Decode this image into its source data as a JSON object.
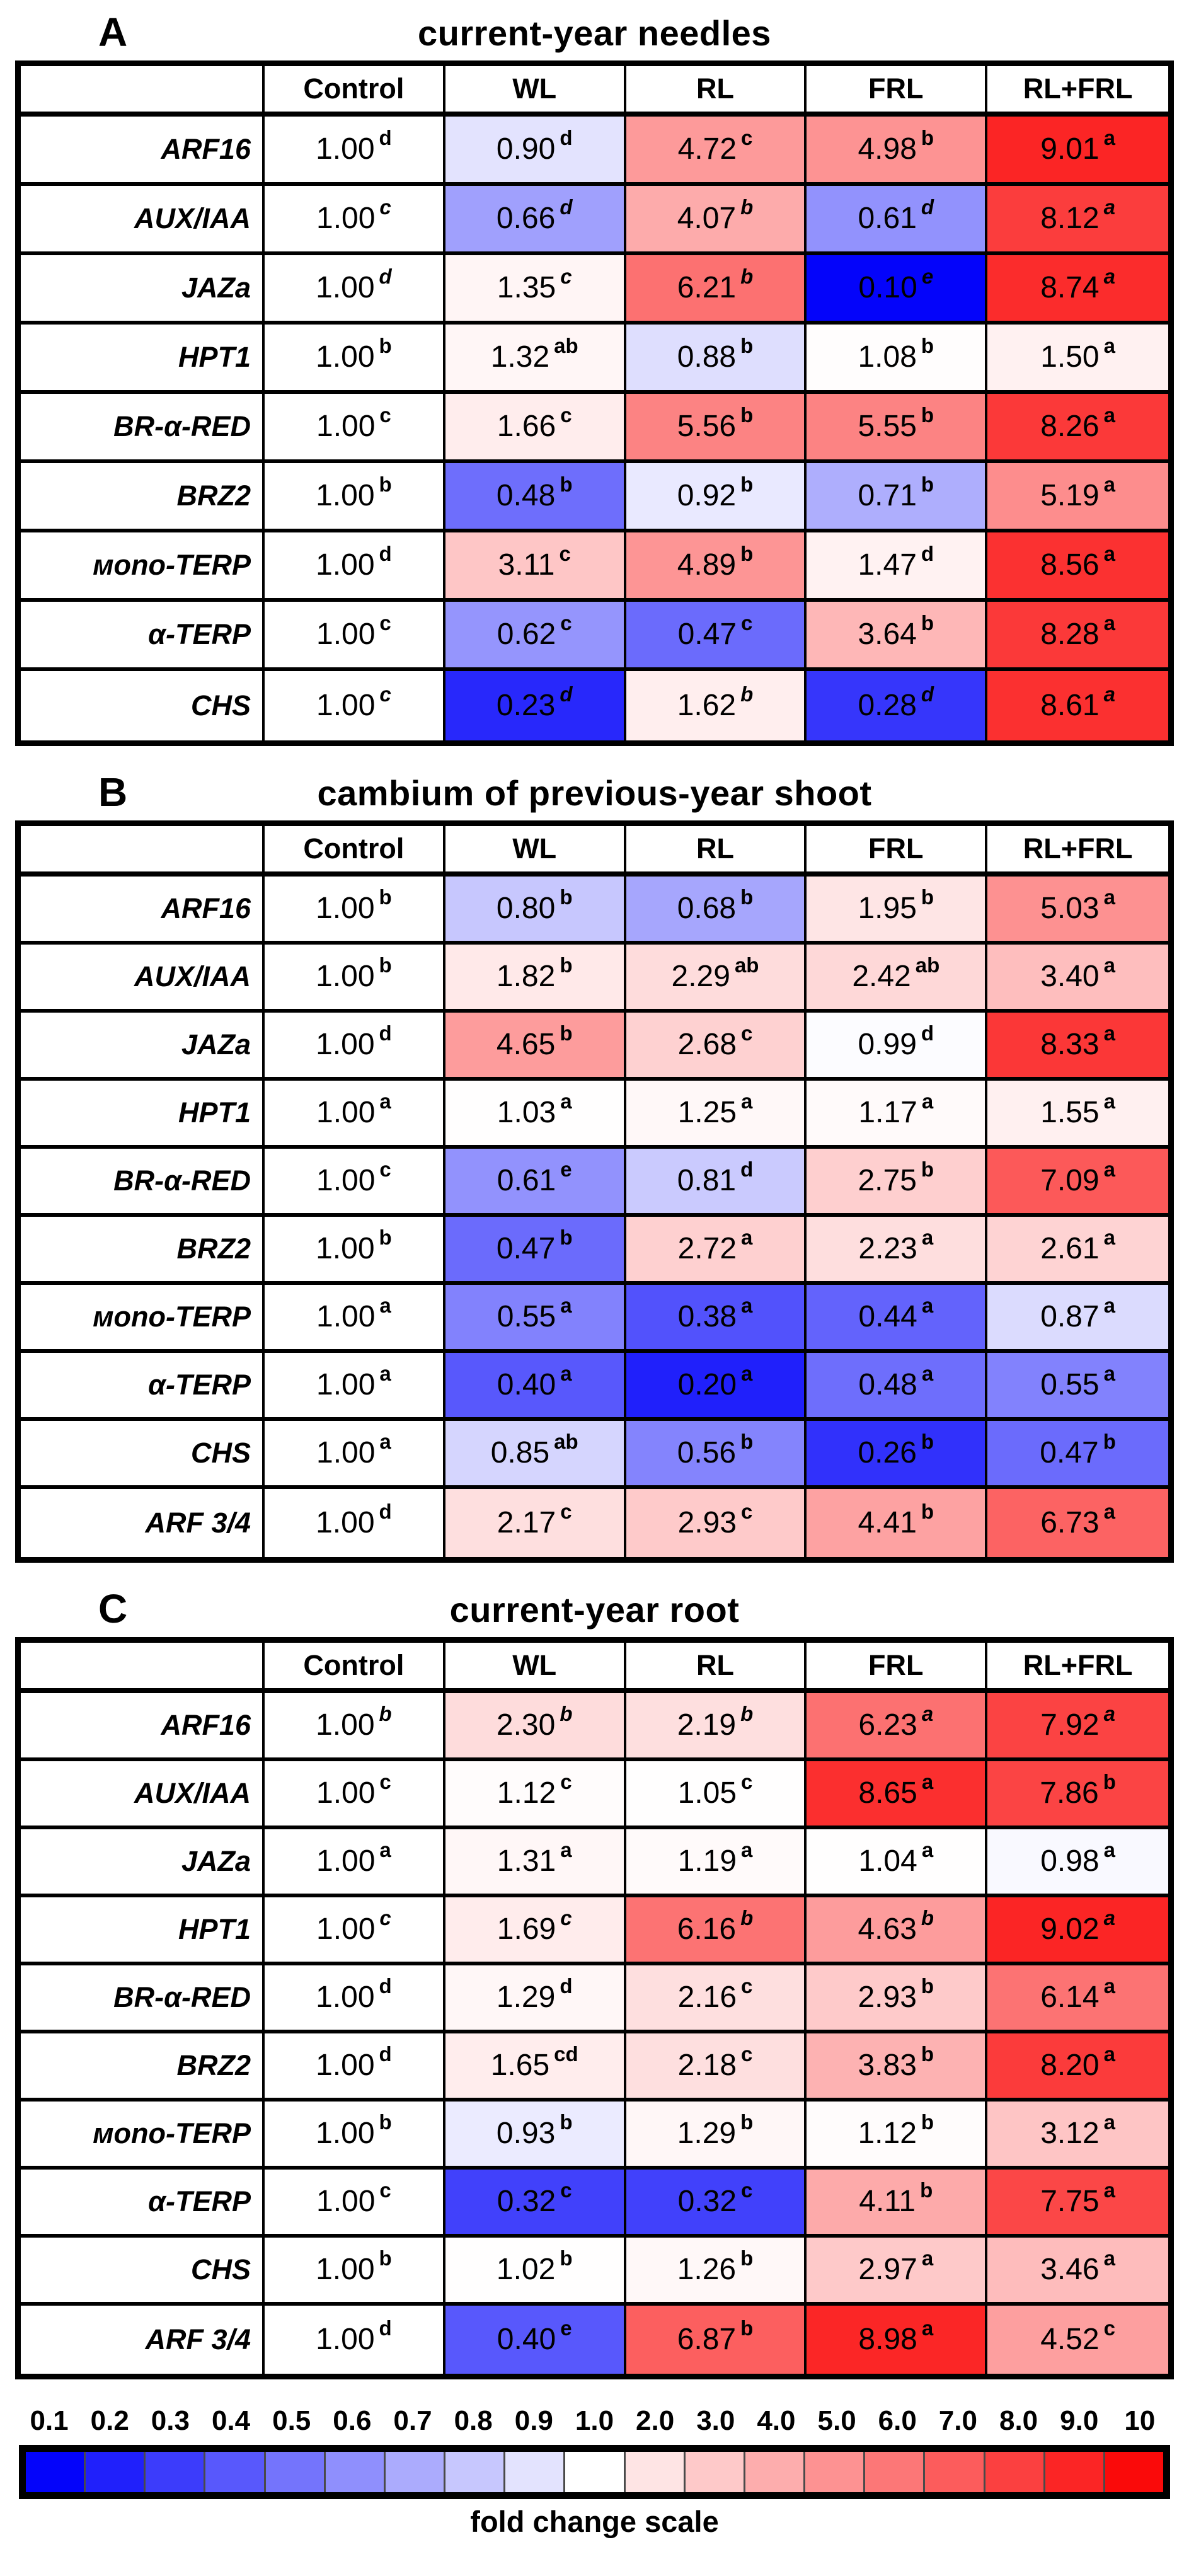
{
  "chart_data": {
    "type": "heatmap",
    "panels": [
      {
        "label": "A",
        "title": "current-year needles",
        "columns": [
          "Control",
          "WL",
          "RL",
          "FRL",
          "RL+FRL"
        ],
        "rows": [
          {
            "gene": "ARF16",
            "values": [
              "1.00",
              "0.90",
              "4.72",
              "4.98",
              "9.01"
            ],
            "sups": [
              "d",
              "d",
              "c",
              "b",
              "a"
            ],
            "sup_italic": false
          },
          {
            "gene": "AUX/IAA",
            "values": [
              "1.00",
              "0.66",
              "4.07",
              "0.61",
              "8.12"
            ],
            "sups": [
              "c",
              "d",
              "b",
              "d",
              "a"
            ],
            "sup_italic": true
          },
          {
            "gene": "JAZa",
            "values": [
              "1.00",
              "1.35",
              "6.21",
              "0.10",
              "8.74"
            ],
            "sups": [
              "d",
              "c",
              "b",
              "e",
              "a"
            ],
            "sup_italic": true
          },
          {
            "gene": "HPT1",
            "values": [
              "1.00",
              "1.32",
              "0.88",
              "1.08",
              "1.50"
            ],
            "sups": [
              "b",
              "ab",
              "b",
              "b",
              "a"
            ],
            "sup_italic": false
          },
          {
            "gene": "BR-α-RED",
            "values": [
              "1.00",
              "1.66",
              "5.56",
              "5.55",
              "8.26"
            ],
            "sups": [
              "c",
              "c",
              "b",
              "b",
              "a"
            ],
            "sup_italic": false
          },
          {
            "gene": "BRZ2",
            "values": [
              "1.00",
              "0.48",
              "0.92",
              "0.71",
              "5.19"
            ],
            "sups": [
              "b",
              "b",
              "b",
              "b",
              "a"
            ],
            "sup_italic": false
          },
          {
            "gene": "мono-TERP",
            "values": [
              "1.00",
              "3.11",
              "4.89",
              "1.47",
              "8.56"
            ],
            "sups": [
              "d",
              "c",
              "b",
              "d",
              "a"
            ],
            "sup_italic": false
          },
          {
            "gene": "α-TERP",
            "values": [
              "1.00",
              "0.62",
              "0.47",
              "3.64",
              "8.28"
            ],
            "sups": [
              "c",
              "c",
              "c",
              "b",
              "a"
            ],
            "sup_italic": false
          },
          {
            "gene": "CHS",
            "values": [
              "1.00",
              "0.23",
              "1.62",
              "0.28",
              "8.61"
            ],
            "sups": [
              "c",
              "d",
              "b",
              "d",
              "a"
            ],
            "sup_italic": true
          }
        ]
      },
      {
        "label": "B",
        "title": "cambium of previous-year shoot",
        "columns": [
          "Control",
          "WL",
          "RL",
          "FRL",
          "RL+FRL"
        ],
        "rows": [
          {
            "gene": "ARF16",
            "values": [
              "1.00",
              "0.80",
              "0.68",
              "1.95",
              "5.03"
            ],
            "sups": [
              "b",
              "b",
              "b",
              "b",
              "a"
            ],
            "sup_italic": false
          },
          {
            "gene": "AUX/IAA",
            "values": [
              "1.00",
              "1.82",
              "2.29",
              "2.42",
              "3.40"
            ],
            "sups": [
              "b",
              "b",
              "ab",
              "ab",
              "a"
            ],
            "sup_italic": false
          },
          {
            "gene": "JAZa",
            "values": [
              "1.00",
              "4.65",
              "2.68",
              "0.99",
              "8.33"
            ],
            "sups": [
              "d",
              "b",
              "c",
              "d",
              "a"
            ],
            "sup_italic": false
          },
          {
            "gene": "HPT1",
            "values": [
              "1.00",
              "1.03",
              "1.25",
              "1.17",
              "1.55"
            ],
            "sups": [
              "a",
              "a",
              "a",
              "a",
              "a"
            ],
            "sup_italic": false
          },
          {
            "gene": "BR-α-RED",
            "values": [
              "1.00",
              "0.61",
              "0.81",
              "2.75",
              "7.09"
            ],
            "sups": [
              "c",
              "e",
              "d",
              "b",
              "a"
            ],
            "sup_italic": false
          },
          {
            "gene": "BRZ2",
            "values": [
              "1.00",
              "0.47",
              "2.72",
              "2.23",
              "2.61"
            ],
            "sups": [
              "b",
              "b",
              "a",
              "a",
              "a"
            ],
            "sup_italic": false
          },
          {
            "gene": "мono-TERP",
            "values": [
              "1.00",
              "0.55",
              "0.38",
              "0.44",
              "0.87"
            ],
            "sups": [
              "a",
              "a",
              "a",
              "a",
              "a"
            ],
            "sup_italic": false
          },
          {
            "gene": "α-TERP",
            "values": [
              "1.00",
              "0.40",
              "0.20",
              "0.48",
              "0.55"
            ],
            "sups": [
              "a",
              "a",
              "a",
              "a",
              "a"
            ],
            "sup_italic": false
          },
          {
            "gene": "CHS",
            "values": [
              "1.00",
              "0.85",
              "0.56",
              "0.26",
              "0.47"
            ],
            "sups": [
              "a",
              "ab",
              "b",
              "b",
              "b"
            ],
            "sup_italic": false
          },
          {
            "gene": "ARF 3/4",
            "values": [
              "1.00",
              "2.17",
              "2.93",
              "4.41",
              "6.73"
            ],
            "sups": [
              "d",
              "c",
              "c",
              "b",
              "a"
            ],
            "sup_italic": false
          }
        ]
      },
      {
        "label": "C",
        "title": "current-year root",
        "columns": [
          "Control",
          "WL",
          "RL",
          "FRL",
          "RL+FRL"
        ],
        "rows": [
          {
            "gene": "ARF16",
            "values": [
              "1.00",
              "2.30",
              "2.19",
              "6.23",
              "7.92"
            ],
            "sups": [
              "b",
              "b",
              "b",
              "a",
              "a"
            ],
            "sup_italic": true
          },
          {
            "gene": "AUX/IAA",
            "values": [
              "1.00",
              "1.12",
              "1.05",
              "8.65",
              "7.86"
            ],
            "sups": [
              "c",
              "c",
              "c",
              "a",
              "b"
            ],
            "sup_italic": false
          },
          {
            "gene": "JAZa",
            "values": [
              "1.00",
              "1.31",
              "1.19",
              "1.04",
              "0.98"
            ],
            "sups": [
              "a",
              "a",
              "a",
              "a",
              "a"
            ],
            "sup_italic": false
          },
          {
            "gene": "HPT1",
            "values": [
              "1.00",
              "1.69",
              "6.16",
              "4.63",
              "9.02"
            ],
            "sups": [
              "c",
              "c",
              "b",
              "b",
              "a"
            ],
            "sup_italic": true
          },
          {
            "gene": "BR-α-RED",
            "values": [
              "1.00",
              "1.29",
              "2.16",
              "2.93",
              "6.14"
            ],
            "sups": [
              "d",
              "d",
              "c",
              "b",
              "a"
            ],
            "sup_italic": false
          },
          {
            "gene": "BRZ2",
            "values": [
              "1.00",
              "1.65",
              "2.18",
              "3.83",
              "8.20"
            ],
            "sups": [
              "d",
              "cd",
              "c",
              "b",
              "a"
            ],
            "sup_italic": false
          },
          {
            "gene": "мono-TERP",
            "values": [
              "1.00",
              "0.93",
              "1.29",
              "1.12",
              "3.12"
            ],
            "sups": [
              "b",
              "b",
              "b",
              "b",
              "a"
            ],
            "sup_italic": false
          },
          {
            "gene": "α-TERP",
            "values": [
              "1.00",
              "0.32",
              "0.32",
              "4.11",
              "7.75"
            ],
            "sups": [
              "c",
              "c",
              "c",
              "b",
              "a"
            ],
            "sup_italic": false
          },
          {
            "gene": "CHS",
            "values": [
              "1.00",
              "1.02",
              "1.26",
              "2.97",
              "3.46"
            ],
            "sups": [
              "b",
              "b",
              "b",
              "a",
              "a"
            ],
            "sup_italic": false
          },
          {
            "gene": "ARF 3/4",
            "values": [
              "1.00",
              "0.40",
              "6.87",
              "8.98",
              "4.52"
            ],
            "sups": [
              "d",
              "e",
              "b",
              "a",
              "c"
            ],
            "sup_italic": false
          }
        ]
      }
    ],
    "colorscale": {
      "caption": "fold change scale",
      "ticks": [
        "0.1",
        "0.2",
        "0.3",
        "0.4",
        "0.5",
        "0.6",
        "0.7",
        "0.8",
        "0.9",
        "1.0",
        "2.0",
        "3.0",
        "4.0",
        "5.0",
        "6.0",
        "7.0",
        "8.0",
        "9.0",
        "10"
      ],
      "tick_values": [
        0.1,
        0.2,
        0.3,
        0.4,
        0.5,
        0.6,
        0.7,
        0.8,
        0.9,
        1.0,
        2.0,
        3.0,
        4.0,
        5.0,
        6.0,
        7.0,
        8.0,
        9.0,
        10
      ],
      "min": 0.1,
      "mid": 1.0,
      "max": 10,
      "low_color": "#0404fa",
      "mid_color": "#ffffff",
      "high_color": "#fa0a0a"
    }
  }
}
